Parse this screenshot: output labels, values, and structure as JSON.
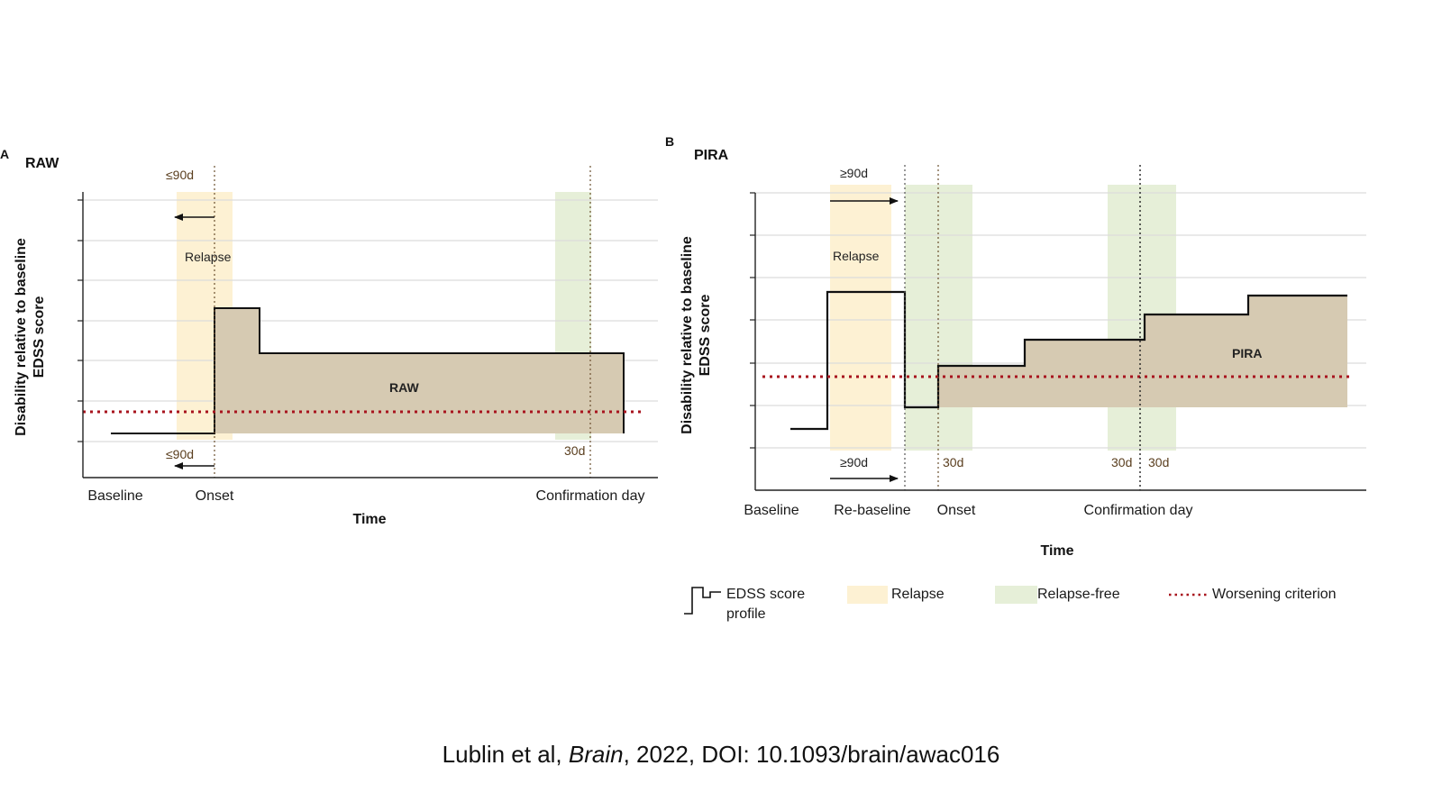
{
  "colors": {
    "relapse": "#fdf1d3",
    "relapse_free": "#e6efd8",
    "disability_area": "#d6cab2",
    "worsening": "#a8141e",
    "edss_line": "#111111",
    "annotation": "#5a3e1e",
    "gridline": "#dcdcdc"
  },
  "panel_a": {
    "letter": "A",
    "title": "RAW",
    "ylabel_line1": "Disability relative to baseline",
    "ylabel_line2": "EDSS score",
    "xlabel": "Time",
    "ticks": {
      "baseline": "Baseline",
      "onset": "Onset",
      "confirmation": "Confirmation day"
    },
    "annotations": {
      "before_top": "≤90d",
      "before_bottom": "≤90d",
      "relapse": "Relapse",
      "after": "30d",
      "area": "RAW"
    }
  },
  "panel_b": {
    "letter": "B",
    "title": "PIRA",
    "ylabel_line1": "Disability relative to baseline",
    "ylabel_line2": "EDSS score",
    "xlabel": "Time",
    "ticks": {
      "baseline": "Baseline",
      "rebaseline": "Re-baseline",
      "onset": "Onset",
      "confirmation": "Confirmation day"
    },
    "annotations": {
      "after_top": "≥90d",
      "after_bottom": "≥90d",
      "relapse": "Relapse",
      "onset_window": "30d",
      "conf_before": "30d",
      "conf_after": "30d",
      "area": "PIRA"
    }
  },
  "legend": {
    "edss_line1": "EDSS score",
    "edss_line2": "profile",
    "relapse": "Relapse",
    "relapse_free": "Relapse-free",
    "worsening": "Worsening criterion"
  },
  "citation": {
    "authors": "Lublin et al, ",
    "journal": "Brain",
    "rest": ", 2022, DOI: 10.1093/brain/awac016"
  }
}
